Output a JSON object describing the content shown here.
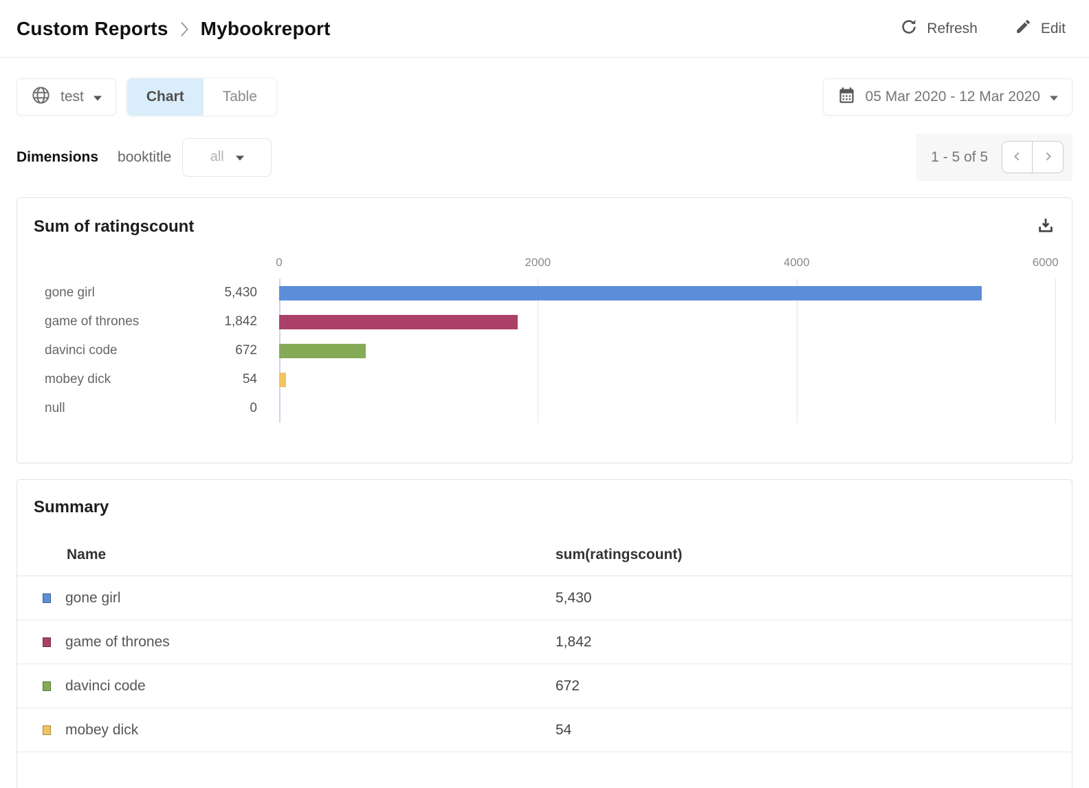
{
  "header": {
    "breadcrumb": {
      "section": "Custom Reports",
      "report": "Mybookreport"
    },
    "actions": {
      "refresh": "Refresh",
      "edit": "Edit"
    }
  },
  "toolbar": {
    "workspace": "test",
    "view_tabs": [
      {
        "label": "Chart",
        "active": true
      },
      {
        "label": "Table",
        "active": false
      }
    ],
    "date_range": "05 Mar 2020 - 12 Mar 2020"
  },
  "dimensions": {
    "label": "Dimensions",
    "field": "booktitle",
    "filter_value": "all",
    "pagination": {
      "range_text": "1 - 5 of 5"
    }
  },
  "chart_data": {
    "type": "bar",
    "orientation": "horizontal",
    "title": "Sum of ratingscount",
    "categories": [
      "gone girl",
      "game of thrones",
      "davinci code",
      "mobey dick",
      "null"
    ],
    "values": [
      5430,
      1842,
      672,
      54,
      0
    ],
    "value_labels": [
      "5,430",
      "1,842",
      "672",
      "54",
      "0"
    ],
    "bar_colors": [
      "#5b8dd9",
      "#ab4168",
      "#86ab57",
      "#f2c35e",
      null
    ],
    "xlim": [
      0,
      6000
    ],
    "x_ticks": [
      0,
      2000,
      4000,
      6000
    ],
    "grid": true,
    "axis_position": "top",
    "legend_position": "none"
  },
  "summary": {
    "title": "Summary",
    "columns": [
      "Name",
      "sum(ratingscount)"
    ],
    "rows": [
      {
        "name": "gone girl",
        "value": "5,430",
        "color": "#5b8dd9"
      },
      {
        "name": "game of thrones",
        "value": "1,842",
        "color": "#ab4168"
      },
      {
        "name": "davinci code",
        "value": "672",
        "color": "#86ab57"
      },
      {
        "name": "mobey dick",
        "value": "54",
        "color": "#f2c35e"
      }
    ]
  },
  "colors": {
    "active_tab_bg": "#d9edfb",
    "bar_blue": "#5b8dd9",
    "bar_maroon": "#ab4168",
    "bar_green": "#86ab57",
    "bar_yellow": "#f2c35e",
    "axis_zero_line": "#ccd5ec",
    "gridline": "#e2e2e2"
  }
}
